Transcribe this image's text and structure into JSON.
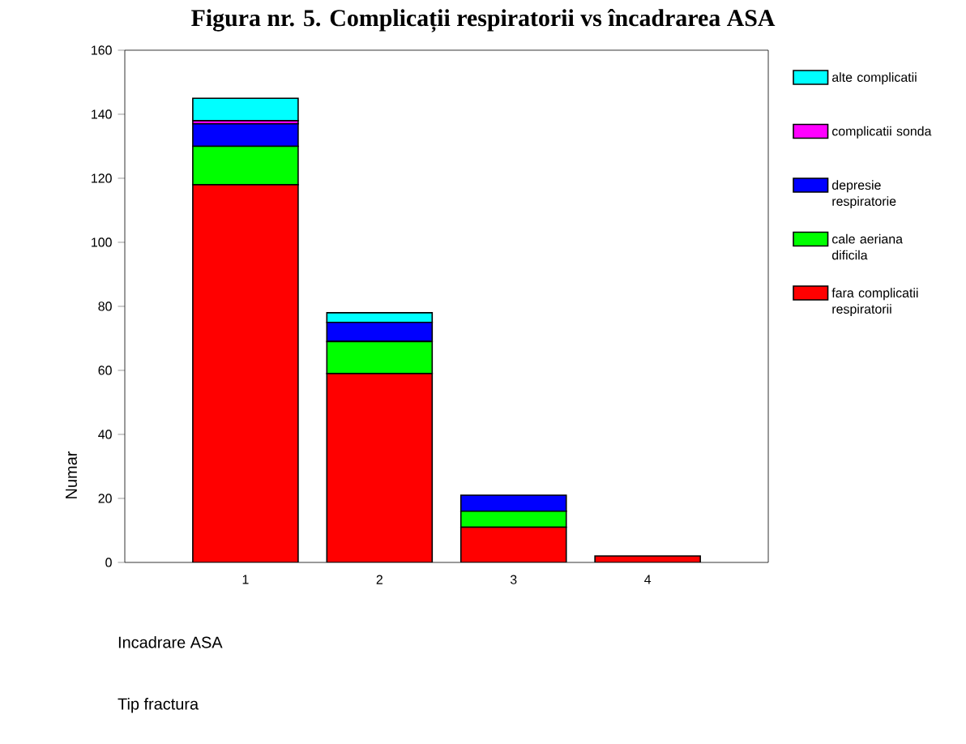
{
  "chart_data": {
    "type": "bar",
    "stacked": true,
    "title": "Figura nr. 5. Complicații respiratorii vs încadrarea ASA",
    "xlabel": "Incadrare ASA",
    "ylabel": "Numar",
    "annotations": [
      "Tip fractura"
    ],
    "categories": [
      "1",
      "2",
      "3",
      "4"
    ],
    "series": [
      {
        "name": "fara complicatii respiratorii",
        "color": "#ff0000",
        "values": [
          118,
          59,
          11,
          2
        ]
      },
      {
        "name": "cale aeriana dificila",
        "color": "#00ff00",
        "values": [
          12,
          10,
          5,
          0
        ]
      },
      {
        "name": "depresie respiratorie",
        "color": "#0000ff",
        "values": [
          7,
          6,
          5,
          0
        ]
      },
      {
        "name": "complicatii sonda",
        "color": "#ff00ff",
        "values": [
          1,
          0,
          0,
          0
        ]
      },
      {
        "name": "alte complicatii",
        "color": "#00ffff",
        "values": [
          7,
          3,
          0,
          0
        ]
      }
    ],
    "ylim": [
      0,
      160
    ],
    "yticks": [
      0,
      20,
      40,
      60,
      80,
      100,
      120,
      140,
      160
    ],
    "legend": "right",
    "grid": false
  }
}
